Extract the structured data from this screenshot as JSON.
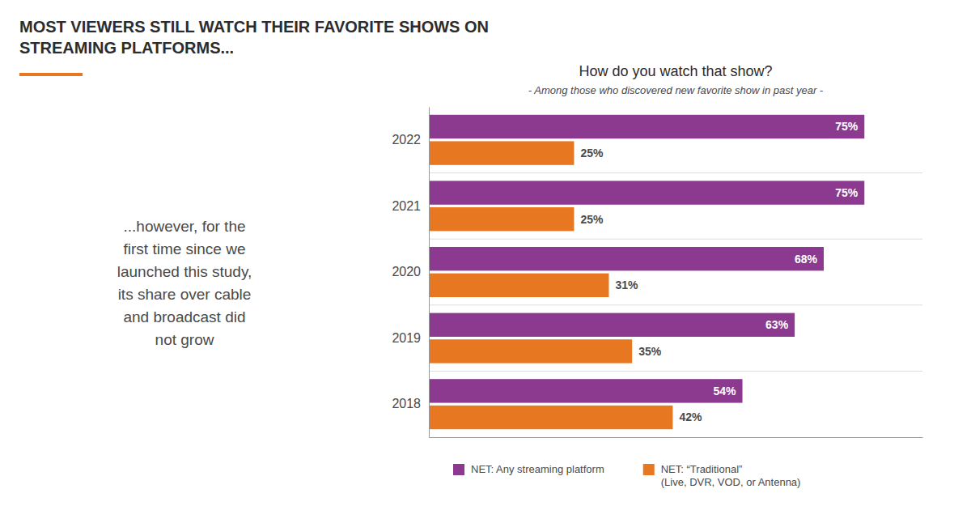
{
  "chart_data": {
    "type": "bar",
    "orientation": "horizontal",
    "title": "MOST VIEWERS STILL WATCH THEIR FAVORITE SHOWS ON\nSTREAMING PLATFORMS...",
    "subtitle": "How do you watch that show?",
    "annotations": [
      "- Among those who discovered new favorite show in past year -",
      "...however, for the\nfirst time since we\nlaunched this study,\nits share over cable\nand broadcast did\nnot grow"
    ],
    "categories": [
      "2022",
      "2021",
      "2020",
      "2019",
      "2018"
    ],
    "series": [
      {
        "name": "NET: Any streaming platform",
        "color": "#8B3A8F",
        "values": [
          75,
          75,
          68,
          63,
          54
        ],
        "value_labels": [
          "75%",
          "75%",
          "68%",
          "63%",
          "54%"
        ]
      },
      {
        "name": "NET: “Traditional”\n(Live, DVR, VOD, or Antenna)",
        "color": "#E87722",
        "values": [
          25,
          25,
          31,
          35,
          42
        ],
        "value_labels": [
          "25%",
          "25%",
          "31%",
          "35%",
          "42%"
        ]
      }
    ],
    "xlim": [
      0,
      85
    ],
    "tick_labels": "y",
    "data_labels": true,
    "grid": false,
    "legend": "bottom"
  }
}
